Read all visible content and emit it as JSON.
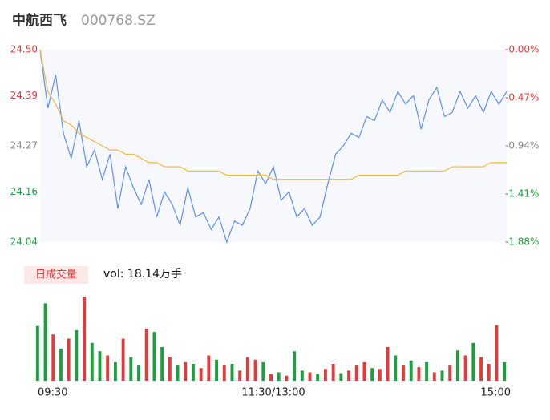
{
  "chart_data": [
    {
      "type": "line",
      "title": "中航西飞",
      "subtitle": "000768.SZ",
      "x": [
        0,
        1,
        2,
        3,
        4,
        5,
        6,
        7,
        8,
        9,
        10,
        11,
        12,
        13,
        14,
        15,
        16,
        17,
        18,
        19,
        20,
        21,
        22,
        23,
        24,
        25,
        26,
        27,
        28,
        29,
        30,
        31,
        32,
        33,
        34,
        35,
        36,
        37,
        38,
        39,
        40,
        41,
        42,
        43,
        44,
        45,
        46,
        47,
        48,
        49,
        50,
        51,
        52,
        53,
        54,
        55,
        56,
        57,
        58,
        59,
        60
      ],
      "series": [
        {
          "name": "price",
          "color": "#5b8ff9",
          "values": [
            24.5,
            24.36,
            24.44,
            24.3,
            24.24,
            24.33,
            24.22,
            24.26,
            24.19,
            24.25,
            24.12,
            24.22,
            24.17,
            24.13,
            24.19,
            24.1,
            24.16,
            24.13,
            24.08,
            24.17,
            24.1,
            24.11,
            24.07,
            24.1,
            24.04,
            24.09,
            24.08,
            24.12,
            24.21,
            24.18,
            24.22,
            24.14,
            24.16,
            24.1,
            24.12,
            24.08,
            24.1,
            24.18,
            24.25,
            24.27,
            24.3,
            24.29,
            24.34,
            24.33,
            24.38,
            24.35,
            24.4,
            24.37,
            24.39,
            24.31,
            24.38,
            24.41,
            24.34,
            24.35,
            24.4,
            24.36,
            24.39,
            24.35,
            24.4,
            24.37,
            24.4
          ]
        },
        {
          "name": "avg",
          "color": "#f2b739",
          "values": [
            24.5,
            24.4,
            24.37,
            24.33,
            24.32,
            24.3,
            24.29,
            24.28,
            24.27,
            24.26,
            24.26,
            24.25,
            24.25,
            24.24,
            24.23,
            24.23,
            24.22,
            24.22,
            24.22,
            24.21,
            24.21,
            24.21,
            24.21,
            24.21,
            24.2,
            24.2,
            24.2,
            24.2,
            24.2,
            24.2,
            24.19,
            24.19,
            24.19,
            24.19,
            24.19,
            24.19,
            24.19,
            24.19,
            24.19,
            24.19,
            24.19,
            24.2,
            24.2,
            24.2,
            24.2,
            24.2,
            24.2,
            24.21,
            24.21,
            24.21,
            24.21,
            24.21,
            24.21,
            24.22,
            24.22,
            24.22,
            24.22,
            24.22,
            24.23,
            24.23,
            24.23
          ]
        }
      ],
      "xlim": [
        0,
        60
      ],
      "xticks": [
        {
          "value": 0,
          "label": "09:30"
        },
        {
          "value": 30,
          "label": "11:30/13:00"
        },
        {
          "value": 60,
          "label": "15:00"
        }
      ],
      "ylim": [
        24.04,
        24.5
      ],
      "yticks": [
        {
          "value": 24.5,
          "label": "24.50"
        },
        24.39,
        24.27,
        24.16,
        {
          "value": 24.04,
          "label": "24.04"
        }
      ],
      "ytick_colors": [
        "#e8393a",
        "#e8393a",
        "#888888",
        "#1aa03c",
        "#1aa03c"
      ],
      "y2lim": [
        -1.88,
        0
      ],
      "y2ticks": [
        {
          "value": 0,
          "label": "-0.00%"
        },
        {
          "value": -0.47,
          "label": "-0.47%"
        },
        {
          "value": -0.94,
          "label": "-0.94%"
        },
        {
          "value": -1.41,
          "label": "-1.41%"
        },
        {
          "value": -1.88,
          "label": "-1.88%"
        }
      ]
    },
    {
      "type": "bar",
      "title": "日成交量",
      "annotation": "vol: 18.14万手",
      "values": [
        65,
        92,
        55,
        38,
        50,
        60,
        100,
        45,
        35,
        30,
        22,
        50,
        28,
        18,
        62,
        58,
        40,
        28,
        18,
        22,
        20,
        15,
        30,
        25,
        18,
        20,
        12,
        28,
        25,
        22,
        8,
        10,
        6,
        35,
        12,
        10,
        8,
        14,
        20,
        9,
        12,
        18,
        22,
        15,
        14,
        40,
        30,
        18,
        24,
        16,
        22,
        10,
        12,
        18,
        36,
        30,
        45,
        28,
        20,
        66,
        22
      ],
      "colors": [
        "#1aa03c",
        "#1aa03c",
        "#e8393a",
        "#1aa03c",
        "#e8393a",
        "#1aa03c",
        "#e8393a",
        "#1aa03c",
        "#1aa03c",
        "#e8393a",
        "#1aa03c",
        "#e8393a",
        "#1aa03c",
        "#1aa03c",
        "#e8393a",
        "#1aa03c",
        "#1aa03c",
        "#e8393a",
        "#1aa03c",
        "#e8393a",
        "#1aa03c",
        "#e8393a",
        "#e8393a",
        "#1aa03c",
        "#e8393a",
        "#1aa03c",
        "#e8393a",
        "#e8393a",
        "#e8393a",
        "#1aa03c",
        "#e8393a",
        "#1aa03c",
        "#e8393a",
        "#1aa03c",
        "#1aa03c",
        "#e8393a",
        "#1aa03c",
        "#e8393a",
        "#e8393a",
        "#1aa03c",
        "#e8393a",
        "#e8393a",
        "#e8393a",
        "#1aa03c",
        "#e8393a",
        "#e8393a",
        "#1aa03c",
        "#e8393a",
        "#1aa03c",
        "#e8393a",
        "#1aa03c",
        "#e8393a",
        "#1aa03c",
        "#e8393a",
        "#1aa03c",
        "#e8393a",
        "#1aa03c",
        "#e8393a",
        "#e8393a",
        "#e8393a",
        "#1aa03c"
      ]
    }
  ]
}
